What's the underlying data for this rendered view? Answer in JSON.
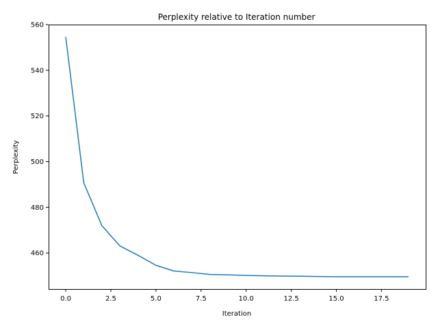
{
  "chart_data": {
    "type": "line",
    "title": "Perplexity relative to Iteration number",
    "xlabel": "Iteration",
    "ylabel": "Perplexity",
    "xlim": [
      -0.95,
      19.95
    ],
    "ylim": [
      444.2,
      560
    ],
    "xticks": [
      0,
      2.5,
      5,
      7.5,
      10,
      12.5,
      15,
      17.5
    ],
    "xtick_labels": [
      "0.0",
      "2.5",
      "5.0",
      "7.5",
      "10.0",
      "12.5",
      "15.0",
      "17.5"
    ],
    "yticks": [
      460,
      480,
      500,
      520,
      540,
      560
    ],
    "ytick_labels": [
      "460",
      "480",
      "500",
      "520",
      "540",
      "560"
    ],
    "grid": false,
    "line_color": "#1f77b4",
    "series": [
      {
        "x": [
          0,
          1,
          2,
          3,
          4,
          5,
          6,
          7,
          8,
          9,
          10,
          11,
          12,
          13,
          14,
          15,
          16,
          17,
          18,
          19
        ],
        "y": [
          554.6,
          490.7,
          472.0,
          463.1,
          459.0,
          454.6,
          452.1,
          451.4,
          450.6,
          450.4,
          450.2,
          450.0,
          449.9,
          449.8,
          449.7,
          449.6,
          449.6,
          449.6,
          449.6,
          449.6
        ]
      }
    ]
  }
}
